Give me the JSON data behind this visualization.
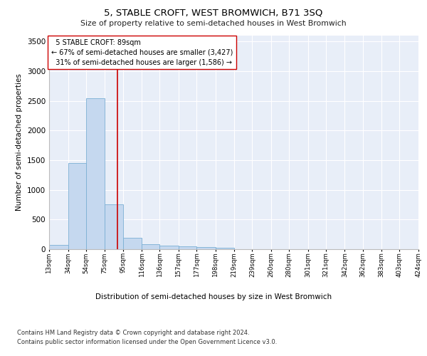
{
  "title": "5, STABLE CROFT, WEST BROMWICH, B71 3SQ",
  "subtitle": "Size of property relative to semi-detached houses in West Bromwich",
  "xlabel": "Distribution of semi-detached houses by size in West Bromwich",
  "ylabel": "Number of semi-detached properties",
  "property_label": "5 STABLE CROFT: 89sqm",
  "pct_smaller": 67,
  "count_smaller": 3427,
  "pct_larger": 31,
  "count_larger": 1586,
  "bar_edges": [
    13,
    34,
    54,
    75,
    95,
    116,
    136,
    157,
    177,
    198,
    219,
    239,
    260,
    280,
    301,
    321,
    342,
    362,
    383,
    403,
    424
  ],
  "bar_heights": [
    75,
    1450,
    2540,
    760,
    190,
    85,
    60,
    45,
    35,
    30,
    0,
    0,
    0,
    0,
    0,
    0,
    0,
    0,
    0,
    0
  ],
  "bar_color": "#c5d8ef",
  "bar_edgecolor": "#7bafd4",
  "vline_x": 89,
  "vline_color": "#cc0000",
  "ylim": [
    0,
    3600
  ],
  "yticks": [
    0,
    500,
    1000,
    1500,
    2000,
    2500,
    3000,
    3500
  ],
  "plot_background": "#e8eef8",
  "footer_line1": "Contains HM Land Registry data © Crown copyright and database right 2024.",
  "footer_line2": "Contains public sector information licensed under the Open Government Licence v3.0.",
  "tick_labels": [
    "13sqm",
    "34sqm",
    "54sqm",
    "75sqm",
    "95sqm",
    "116sqm",
    "136sqm",
    "157sqm",
    "177sqm",
    "198sqm",
    "219sqm",
    "239sqm",
    "260sqm",
    "280sqm",
    "301sqm",
    "321sqm",
    "342sqm",
    "362sqm",
    "383sqm",
    "403sqm",
    "424sqm"
  ]
}
